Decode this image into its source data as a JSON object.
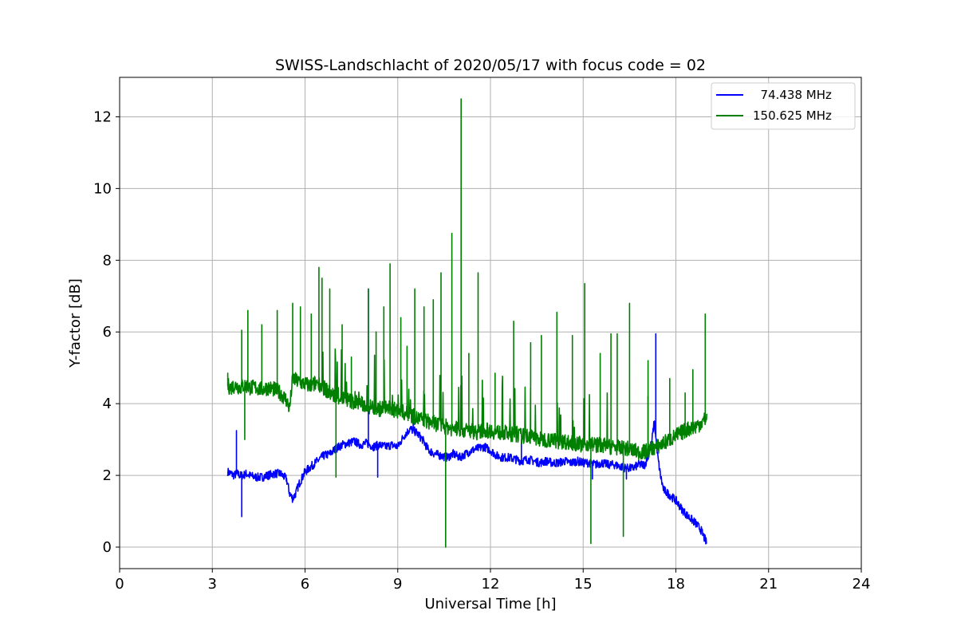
{
  "chart_data": {
    "type": "line",
    "title": "SWISS-Landschlacht of 2020/05/17 with focus code = 02",
    "xlabel": "Universal Time [h]",
    "ylabel": "Y-factor [dB]",
    "xlim": [
      0,
      24
    ],
    "ylim": [
      -0.6,
      13.1
    ],
    "xticks": [
      0,
      3,
      6,
      9,
      12,
      15,
      18,
      21,
      24
    ],
    "yticks": [
      0,
      2,
      4,
      6,
      8,
      10,
      12
    ],
    "grid": true,
    "legend_position": "top-right",
    "series": [
      {
        "name": "74.438 MHz",
        "legend_label": "  74.438 MHz",
        "color": "#0000ff",
        "x": [
          3.5,
          3.6,
          3.7,
          3.8,
          3.9,
          4.0,
          4.1,
          4.2,
          4.4,
          4.6,
          4.8,
          5.0,
          5.2,
          5.4,
          5.5,
          5.6,
          5.7,
          5.8,
          6.0,
          6.2,
          6.4,
          6.6,
          6.8,
          7.0,
          7.2,
          7.4,
          7.6,
          7.8,
          8.0,
          8.2,
          8.4,
          8.6,
          8.8,
          9.0,
          9.2,
          9.4,
          9.6,
          9.8,
          10.0,
          10.2,
          10.4,
          10.6,
          10.8,
          11.0,
          11.2,
          11.4,
          11.6,
          11.8,
          12.0,
          12.2,
          12.4,
          12.6,
          12.8,
          13.0,
          13.2,
          13.4,
          13.6,
          13.8,
          14.0,
          14.2,
          14.4,
          14.6,
          14.8,
          15.0,
          15.2,
          15.4,
          15.6,
          15.8,
          16.0,
          16.2,
          16.4,
          16.6,
          16.8,
          17.0,
          17.2,
          17.3,
          17.4,
          17.5,
          17.6,
          17.8,
          18.0,
          18.2,
          18.4,
          18.6,
          18.8,
          19.0
        ],
        "y": [
          2.1,
          2.05,
          2.0,
          2.05,
          2.0,
          2.0,
          2.05,
          2.0,
          1.95,
          1.95,
          2.0,
          2.05,
          2.05,
          1.9,
          1.5,
          1.35,
          1.5,
          1.75,
          2.1,
          2.25,
          2.4,
          2.55,
          2.6,
          2.75,
          2.85,
          2.9,
          2.95,
          2.85,
          2.9,
          2.8,
          2.85,
          2.8,
          2.85,
          2.8,
          3.1,
          3.3,
          3.2,
          3.0,
          2.7,
          2.6,
          2.55,
          2.5,
          2.6,
          2.5,
          2.6,
          2.7,
          2.75,
          2.8,
          2.7,
          2.55,
          2.5,
          2.5,
          2.45,
          2.4,
          2.45,
          2.4,
          2.35,
          2.4,
          2.35,
          2.35,
          2.4,
          2.35,
          2.4,
          2.35,
          2.35,
          2.3,
          2.35,
          2.3,
          2.3,
          2.25,
          2.2,
          2.2,
          2.3,
          2.3,
          2.8,
          3.5,
          2.6,
          2.0,
          1.6,
          1.45,
          1.3,
          1.05,
          0.85,
          0.7,
          0.5,
          0.1
        ],
        "spikes": [
          [
            3.78,
            3.25
          ],
          [
            3.95,
            0.85
          ],
          [
            8.05,
            7.2
          ],
          [
            17.35,
            5.95
          ],
          [
            17.1,
            4.2
          ],
          [
            15.3,
            1.9
          ],
          [
            16.4,
            1.9
          ],
          [
            8.35,
            1.95
          ],
          [
            13.0,
            3.0
          ],
          [
            9.5,
            3.6
          ]
        ]
      },
      {
        "name": "150.625 MHz",
        "legend_label": "150.625 MHz",
        "color": "#008000",
        "x": [
          3.5,
          3.6,
          3.7,
          3.8,
          3.9,
          4.0,
          4.1,
          4.2,
          4.4,
          4.6,
          4.8,
          5.0,
          5.2,
          5.4,
          5.5,
          5.6,
          5.7,
          5.8,
          6.0,
          6.2,
          6.4,
          6.6,
          6.8,
          7.0,
          7.2,
          7.4,
          7.6,
          7.8,
          8.0,
          8.2,
          8.4,
          8.6,
          8.8,
          9.0,
          9.2,
          9.4,
          9.6,
          9.8,
          10.0,
          10.2,
          10.4,
          10.6,
          10.8,
          11.0,
          11.2,
          11.4,
          11.6,
          11.8,
          12.0,
          12.2,
          12.4,
          12.6,
          12.8,
          13.0,
          13.2,
          13.4,
          13.6,
          13.8,
          14.0,
          14.2,
          14.4,
          14.6,
          14.8,
          15.0,
          15.2,
          15.4,
          15.6,
          15.8,
          16.0,
          16.2,
          16.4,
          16.6,
          16.8,
          17.0,
          17.2,
          17.4,
          17.6,
          17.8,
          18.0,
          18.2,
          18.4,
          18.6,
          18.8,
          19.0
        ],
        "y": [
          4.5,
          4.45,
          4.5,
          4.5,
          4.45,
          4.5,
          4.5,
          4.45,
          4.45,
          4.4,
          4.45,
          4.4,
          4.3,
          4.1,
          3.85,
          4.7,
          4.65,
          4.6,
          4.55,
          4.5,
          4.6,
          4.45,
          4.3,
          4.2,
          4.15,
          4.1,
          4.05,
          4.0,
          3.95,
          3.9,
          3.85,
          3.9,
          3.85,
          3.8,
          3.75,
          3.7,
          3.6,
          3.55,
          3.5,
          3.45,
          3.4,
          3.35,
          3.3,
          3.3,
          3.25,
          3.25,
          3.2,
          3.25,
          3.25,
          3.2,
          3.2,
          3.15,
          3.15,
          3.1,
          3.1,
          3.05,
          3.0,
          3.0,
          3.0,
          2.95,
          2.95,
          2.9,
          2.9,
          2.85,
          2.9,
          2.85,
          2.85,
          2.8,
          2.8,
          2.75,
          2.75,
          2.7,
          2.65,
          2.65,
          2.75,
          2.8,
          2.9,
          3.0,
          3.1,
          3.2,
          3.3,
          3.35,
          3.45,
          3.6
        ],
        "spikes": [
          [
            3.5,
            4.85
          ],
          [
            3.95,
            6.05
          ],
          [
            4.05,
            3.0
          ],
          [
            4.15,
            6.6
          ],
          [
            4.6,
            6.2
          ],
          [
            5.1,
            6.6
          ],
          [
            5.6,
            6.8
          ],
          [
            5.85,
            6.7
          ],
          [
            6.2,
            6.5
          ],
          [
            6.45,
            7.8
          ],
          [
            6.55,
            7.5
          ],
          [
            6.8,
            7.2
          ],
          [
            7.0,
            1.95
          ],
          [
            7.2,
            6.2
          ],
          [
            7.5,
            5.3
          ],
          [
            8.05,
            7.2
          ],
          [
            8.3,
            6.0
          ],
          [
            8.55,
            6.7
          ],
          [
            8.75,
            7.9
          ],
          [
            9.1,
            6.4
          ],
          [
            9.3,
            5.6
          ],
          [
            9.55,
            7.2
          ],
          [
            9.85,
            6.7
          ],
          [
            10.15,
            6.9
          ],
          [
            10.4,
            7.65
          ],
          [
            10.55,
            0.0
          ],
          [
            10.75,
            8.75
          ],
          [
            11.05,
            12.5
          ],
          [
            11.3,
            5.4
          ],
          [
            11.6,
            7.65
          ],
          [
            12.15,
            4.85
          ],
          [
            12.75,
            6.3
          ],
          [
            13.3,
            5.7
          ],
          [
            13.65,
            5.9
          ],
          [
            14.15,
            6.55
          ],
          [
            14.65,
            5.9
          ],
          [
            15.05,
            7.35
          ],
          [
            15.25,
            0.1
          ],
          [
            15.55,
            5.4
          ],
          [
            15.9,
            5.95
          ],
          [
            16.1,
            5.95
          ],
          [
            16.3,
            0.3
          ],
          [
            16.5,
            6.8
          ],
          [
            17.1,
            5.2
          ],
          [
            17.8,
            4.7
          ],
          [
            18.3,
            4.3
          ],
          [
            18.55,
            4.95
          ],
          [
            18.95,
            6.5
          ]
        ]
      }
    ]
  }
}
